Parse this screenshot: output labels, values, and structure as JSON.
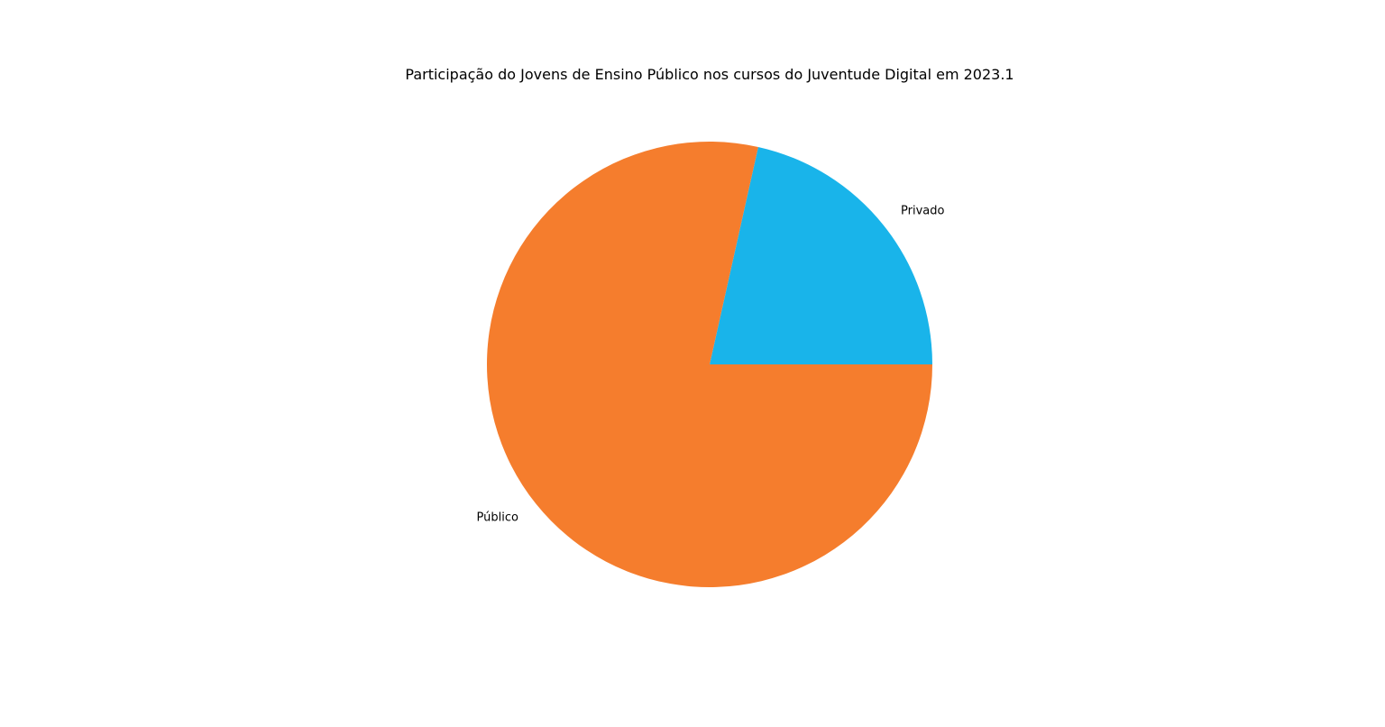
{
  "chart_data": {
    "type": "pie",
    "title": "Participação do Jovens de Ensino Público nos cursos do Juventude Digital em 2023.1",
    "categories": [
      "Privado",
      "Público"
    ],
    "values": [
      21.5,
      78.5
    ],
    "colors": [
      "#19b4ea",
      "#f57d2d"
    ],
    "start_angle_deg": 0,
    "direction": "counterclockwise",
    "legend": "none"
  }
}
